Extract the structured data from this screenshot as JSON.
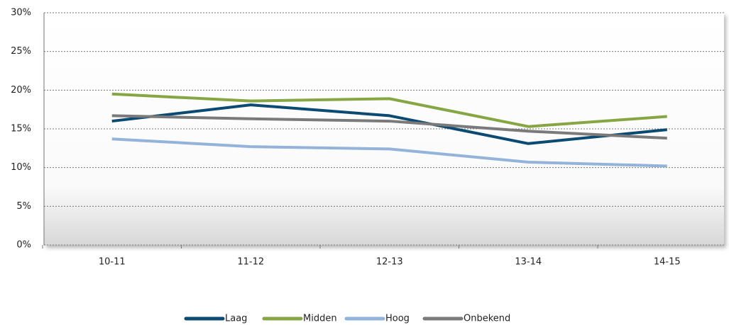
{
  "chart_data": {
    "type": "line",
    "categories": [
      "10-11",
      "11-12",
      "12-13",
      "13-14",
      "14-15"
    ],
    "series": [
      {
        "name": "Laag",
        "color": "#0b4a72",
        "values": [
          16.0,
          18.1,
          16.7,
          13.1,
          14.9
        ]
      },
      {
        "name": "Midden",
        "color": "#86a644",
        "values": [
          19.5,
          18.6,
          18.9,
          15.3,
          16.6
        ]
      },
      {
        "name": "Hoog",
        "color": "#93b3db",
        "values": [
          13.7,
          12.7,
          12.4,
          10.7,
          10.2
        ]
      },
      {
        "name": "Onbekend",
        "color": "#7a7a7a",
        "values": [
          16.7,
          16.3,
          16.0,
          14.7,
          13.8
        ]
      }
    ],
    "ylim": [
      0,
      30
    ],
    "yticks": [
      {
        "value": 0,
        "label": "0%"
      },
      {
        "value": 5,
        "label": "5%"
      },
      {
        "value": 10,
        "label": "10%"
      },
      {
        "value": 15,
        "label": "15%"
      },
      {
        "value": 20,
        "label": "20%"
      },
      {
        "value": 25,
        "label": "25%"
      },
      {
        "value": 30,
        "label": "30%"
      }
    ],
    "grid": true,
    "legend": "bottom"
  }
}
